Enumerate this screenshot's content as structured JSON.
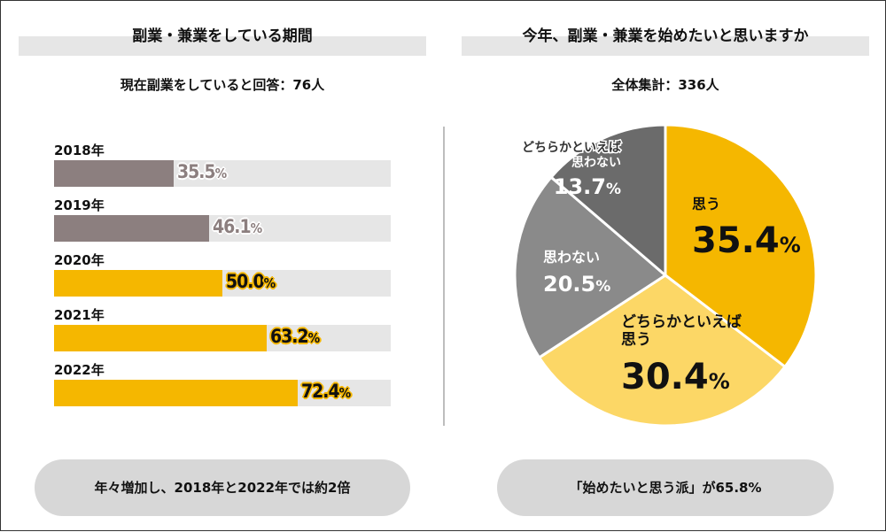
{
  "colors": {
    "gold": "#f5b700",
    "light_gold": "#fcd766",
    "mid_gray": "#8a8a8a",
    "dark_gray": "#6b6b6b",
    "bar_gray": "#8c7f7f",
    "track": "#e6e6e6"
  },
  "left": {
    "title": "副業・兼業をしている期間",
    "subtitle": "現在副業をしていると回答：76人",
    "summary": "年々増加し、2018年と2022年では約2倍"
  },
  "right": {
    "title": "今年、副業・兼業を始めたいと思いますか",
    "subtitle": "全体集計：336人",
    "summary": "「始めたいと思う派」が65.8%"
  },
  "chart_data": [
    {
      "type": "bar",
      "orientation": "horizontal",
      "title": "副業・兼業をしている期間",
      "categories": [
        "2018年",
        "2019年",
        "2020年",
        "2021年",
        "2022年"
      ],
      "values": [
        35.5,
        46.1,
        50.0,
        63.2,
        72.4
      ],
      "value_labels": [
        "35.5",
        "46.1",
        "50.0",
        "63.2",
        "72.4"
      ],
      "unit": "%",
      "xlim": [
        0,
        100
      ]
    },
    {
      "type": "pie",
      "title": "今年、副業・兼業を始めたいと思いますか",
      "unit": "%",
      "slices": [
        {
          "label_lines": [
            "思う"
          ],
          "value": 35.4,
          "value_label": "35.4"
        },
        {
          "label_lines": [
            "どちらかといえば",
            "思う"
          ],
          "value": 30.4,
          "value_label": "30.4"
        },
        {
          "label_lines": [
            "思わない"
          ],
          "value": 20.5,
          "value_label": "20.5"
        },
        {
          "label_lines": [
            "どちらかといえば",
            "思わない"
          ],
          "value": 13.7,
          "value_label": "13.7"
        }
      ]
    }
  ]
}
